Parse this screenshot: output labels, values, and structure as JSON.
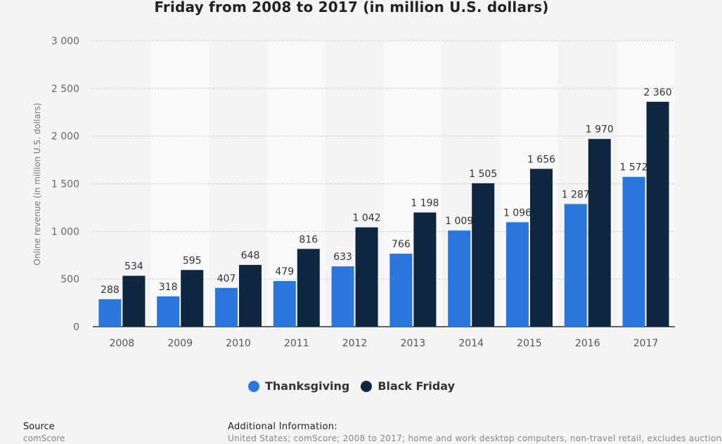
{
  "chart_data": {
    "type": "bar",
    "title": "Friday from 2008 to 2017 (in million U.S. dollars)",
    "ylabel": "Online revenue (in million U.S. dollars)",
    "xlabel": "",
    "ylim": [
      0,
      3000
    ],
    "yticks": [
      0,
      500,
      1000,
      1500,
      2000,
      2500,
      3000
    ],
    "ytick_labels": [
      "0",
      "500",
      "1 000",
      "1 500",
      "2 000",
      "2 500",
      "3 000"
    ],
    "categories": [
      "2008",
      "2009",
      "2010",
      "2011",
      "2012",
      "2013",
      "2014",
      "2015",
      "2016",
      "2017"
    ],
    "series": [
      {
        "name": "Thanksgiving",
        "color": "#2a76dd",
        "values": [
          288,
          318,
          407,
          479,
          633,
          766,
          1009,
          1096,
          1287,
          1572
        ],
        "labels": [
          "288",
          "318",
          "407",
          "479",
          "633",
          "766",
          "1 009",
          "1 096",
          "1 287",
          "1 572"
        ]
      },
      {
        "name": "Black Friday",
        "color": "#0f2640",
        "values": [
          534,
          595,
          648,
          816,
          1042,
          1198,
          1505,
          1656,
          1970,
          2360
        ],
        "labels": [
          "534",
          "595",
          "648",
          "816",
          "1 042",
          "1 198",
          "1 505",
          "1 656",
          "1 970",
          "2 360"
        ]
      }
    ],
    "grid": true,
    "legend_position": "bottom-center"
  },
  "footer": {
    "source_label": "Source",
    "source_value": "comScore",
    "info_label": "Additional Information:",
    "info_value": "United States; comScore; 2008 to 2017; home and work desktop computers, non-travel retail, excludes auction"
  }
}
